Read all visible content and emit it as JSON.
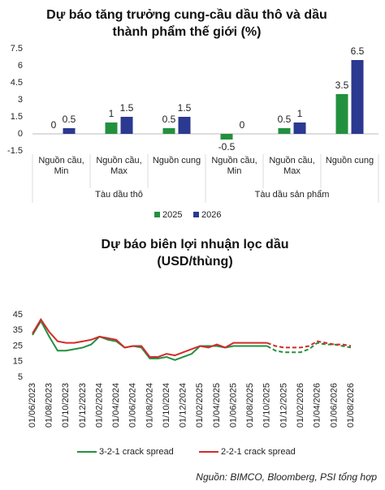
{
  "chart_data": [
    {
      "type": "bar",
      "title": "Dự báo tăng trưởng cung-cầu dầu thô và dầu thành phẩm thế giới (%)",
      "categories": [
        "Nguồn cầu, Min",
        "Nguồn cầu, Max",
        "Nguồn cung",
        "Nguồn cầu, Min",
        "Nguồn cầu, Max",
        "Nguồn cung"
      ],
      "groups": [
        "Tàu dầu thô",
        "Tàu dầu sản phẩm"
      ],
      "series": [
        {
          "name": "2025",
          "color": "#23903f",
          "values": [
            0,
            1,
            0.5,
            -0.5,
            0.5,
            3.5
          ]
        },
        {
          "name": "2026",
          "color": "#2b3990",
          "values": [
            0.5,
            1.5,
            1.5,
            0,
            1,
            6.5
          ]
        }
      ],
      "ylim": [
        -1.5,
        7.5
      ],
      "yticks": [
        -1.5,
        0,
        1.5,
        3,
        4.5,
        6,
        7.5
      ],
      "grid": false,
      "legend": "bottom"
    },
    {
      "type": "line",
      "title": "Dự báo biên lợi nhuận lọc dầu (USD/thùng)",
      "x": [
        "01/06/2023",
        null,
        "01/08/2023",
        null,
        "01/10/2023",
        null,
        "01/12/2023",
        null,
        "01/02/2024",
        null,
        "01/04/2024",
        null,
        "01/06/2024",
        null,
        "01/08/2024",
        null,
        "01/10/2024",
        null,
        "01/12/2024",
        null,
        "01/02/2025",
        null,
        "01/04/2025",
        null,
        "01/06/2025",
        null,
        "01/08/2025",
        null,
        "01/10/2025",
        null,
        "01/12/2025",
        null,
        "01/02/2026",
        null,
        "01/04/2026",
        null,
        "01/06/2026",
        null,
        "01/08/2026"
      ],
      "forecast_from": "01/10/2025",
      "series": [
        {
          "name": "3-2-1 crack spread",
          "color": "#23903f",
          "values": [
            32,
            41,
            31,
            22,
            22,
            23,
            24,
            26,
            31,
            29,
            28,
            24,
            25,
            24,
            17,
            17,
            18,
            16,
            18,
            20,
            25,
            25,
            25,
            24,
            25,
            25,
            25,
            25,
            25,
            22,
            21,
            21,
            21,
            23,
            27,
            26,
            26,
            25,
            24
          ]
        },
        {
          "name": "2-2-1 crack spread",
          "color": "#d22b2b",
          "values": [
            33,
            42,
            34,
            28,
            27,
            27,
            28,
            29,
            31,
            30,
            29,
            24,
            25,
            25,
            18,
            18,
            20,
            19,
            21,
            23,
            25,
            24,
            26,
            24,
            27,
            27,
            27,
            27,
            27,
            25,
            24,
            24,
            24,
            25,
            28,
            27,
            26,
            26,
            25
          ]
        }
      ],
      "ylim": [
        5,
        45
      ],
      "yticks": [
        5,
        15,
        25,
        35,
        45
      ],
      "grid": false,
      "legend": "bottom"
    }
  ],
  "source": "Nguồn: BIMCO, Bloomberg, PSI tổng hợp"
}
